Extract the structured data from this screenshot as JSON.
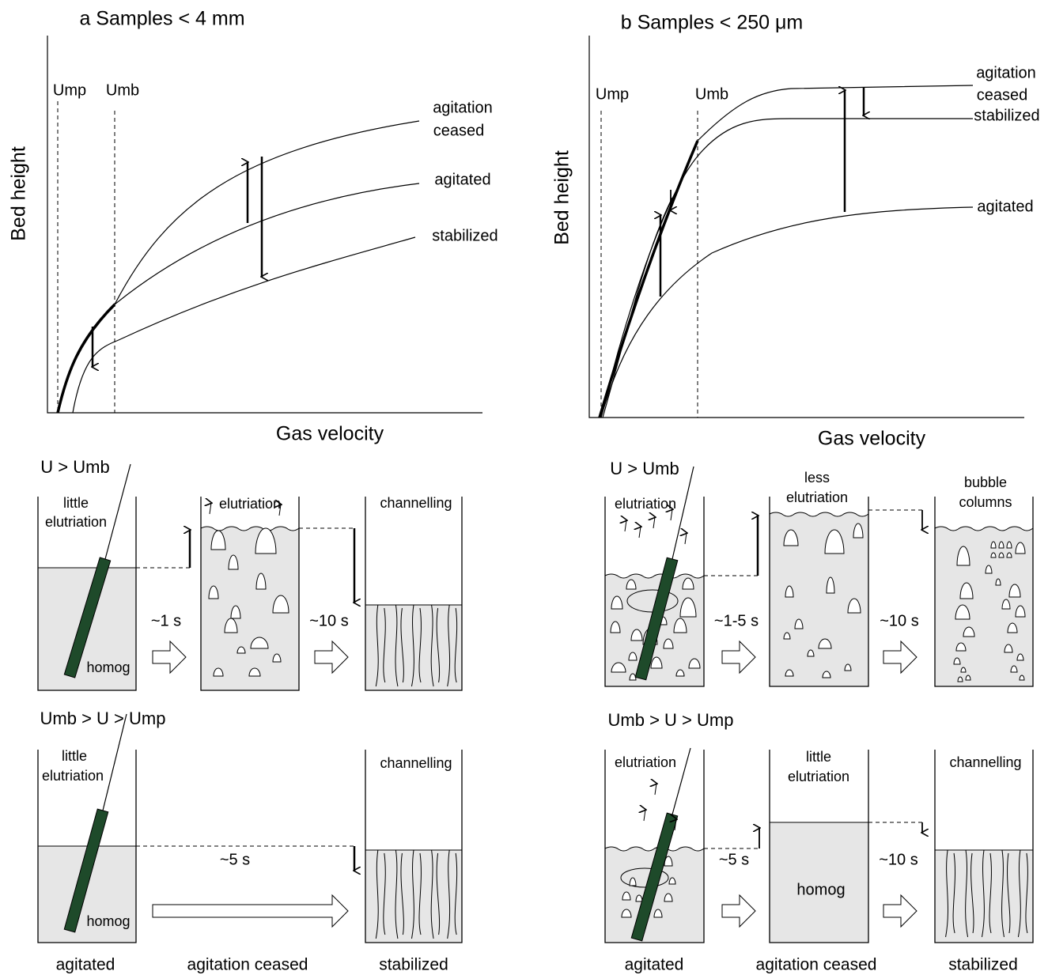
{
  "panel_a": {
    "title": "a  Samples < 4 mm",
    "y_label": "Bed height",
    "x_label": "Gas velocity",
    "ump": "Ump",
    "umb": "Umb",
    "curve_labels": {
      "agitation_ceased": [
        "agitation",
        "ceased"
      ],
      "agitated": "agitated",
      "stabilized": "stabilized"
    },
    "row1": {
      "condition": "U > Umb",
      "beaker1": [
        "little",
        "elutriation"
      ],
      "beaker1_bottom": "homog",
      "time1": "~1 s",
      "beaker2": "elutriation",
      "time2": "~10 s",
      "beaker3": "channelling"
    },
    "row2": {
      "condition": "Umb > U > Ump",
      "beaker1": [
        "little",
        "elutriation"
      ],
      "beaker1_bottom": "homog",
      "time1": "~5 s",
      "beaker3": "channelling"
    },
    "bottom_labels": [
      "agitated",
      "agitation ceased",
      "stabilized"
    ]
  },
  "panel_b": {
    "title": "b  Samples < 250 μm",
    "y_label": "Bed height",
    "x_label": "Gas velocity",
    "ump": "Ump",
    "umb": "Umb",
    "curve_labels": {
      "agitation_ceased": [
        "agitation",
        "ceased"
      ],
      "stabilized": "stabilized",
      "agitated": "agitated"
    },
    "row1": {
      "condition": "U > Umb",
      "beaker1": "elutriation",
      "time1": "~1-5 s",
      "beaker2": [
        "less",
        "elutriation"
      ],
      "time2": "~10 s",
      "beaker3": [
        "bubble",
        "columns"
      ]
    },
    "row2": {
      "condition": "Umb > U > Ump",
      "beaker1": "elutriation",
      "time1": "~5 s",
      "beaker2": [
        "little",
        "elutriation"
      ],
      "beaker2_middle": "homog",
      "time2": "~10 s",
      "beaker3": "channelling"
    },
    "bottom_labels": [
      "agitated",
      "agitation ceased",
      "stabilized"
    ]
  }
}
